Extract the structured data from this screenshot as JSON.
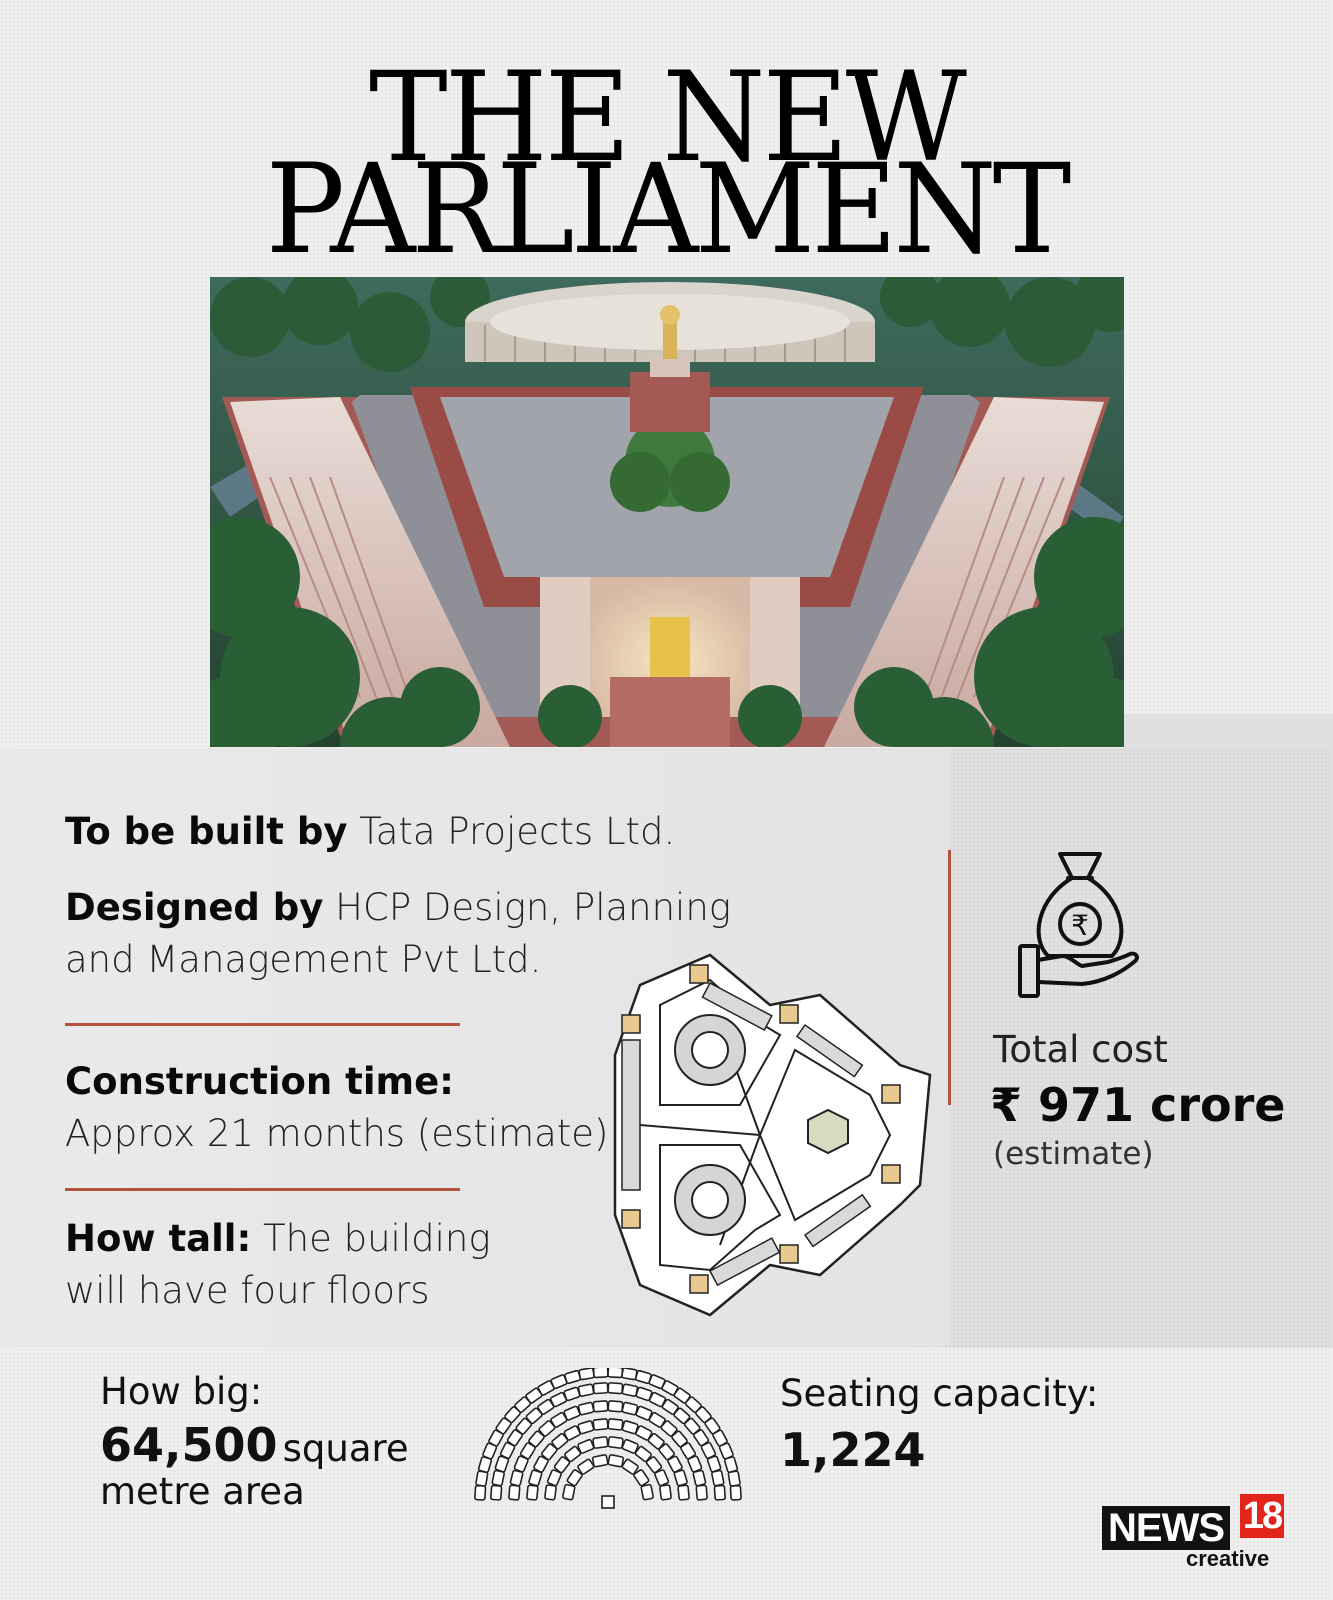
{
  "title": {
    "line1": "THE NEW",
    "line2": "PARLIAMENT"
  },
  "facts": {
    "built_by": {
      "label": "To be built by",
      "value": "Tata Projects Ltd."
    },
    "designed_by": {
      "label": "Designed by",
      "value_line1": "HCP Design, Planning",
      "value_line2": "and Management Pvt Ltd."
    },
    "construction_time": {
      "label": "Construction time:",
      "value": "Approx 21 months (estimate)"
    },
    "how_tall": {
      "label": "How tall:",
      "value_part1": "The building",
      "value_part2": "will have four floors"
    }
  },
  "cost": {
    "label": "Total cost",
    "value": "₹ 971 crore",
    "note": "(estimate)",
    "icon": "money-bag-hand-icon",
    "currency_symbol": "₹"
  },
  "size": {
    "label": "How big:",
    "value": "64,500",
    "unit_part1": "square",
    "unit_part2": "metre area"
  },
  "seating": {
    "label": "Seating capacity:",
    "value": "1,224",
    "icon": "seating-chart-icon"
  },
  "logo": {
    "main": "NEWS",
    "number": "18",
    "sub": "creative"
  },
  "colors": {
    "accent_rule": "#b4523c",
    "logo_red": "#e1251b"
  }
}
